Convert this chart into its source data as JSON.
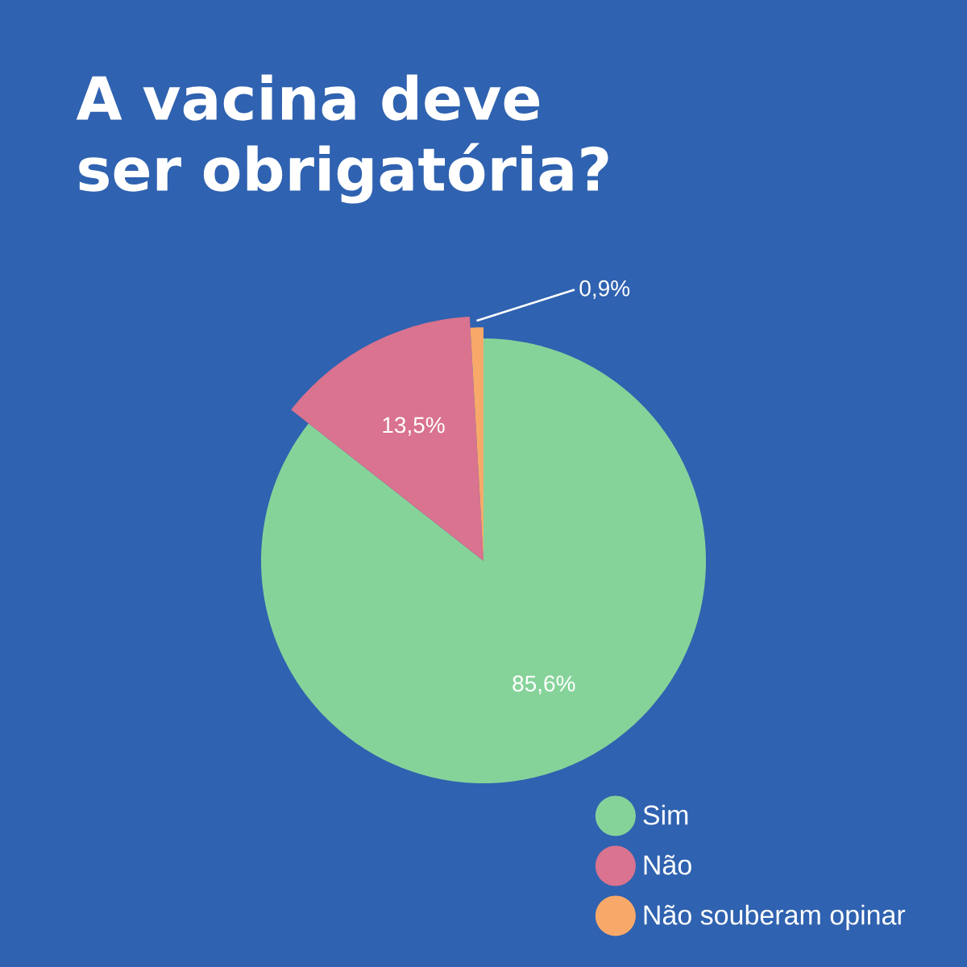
{
  "chart_data": {
    "type": "pie",
    "title": "A vacina deve ser obrigatória?",
    "categories": [
      "Sim",
      "Não",
      "Não souberam opinar"
    ],
    "values": [
      85.6,
      13.5,
      0.9
    ],
    "colors": [
      "#86d39a",
      "#d9738f",
      "#f8a96a"
    ],
    "value_labels": [
      "85,6%",
      "13,5%",
      "0,9%"
    ],
    "legend": "bottom right"
  }
}
